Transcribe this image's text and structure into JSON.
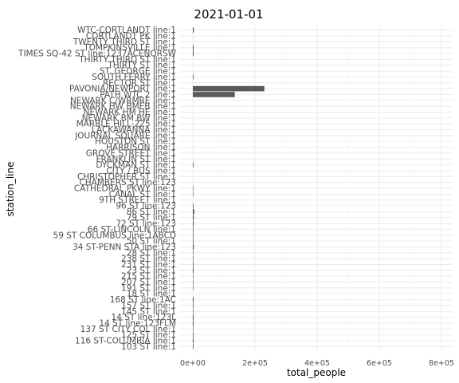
{
  "chart_data": {
    "type": "bar",
    "orientation": "horizontal",
    "title": "2021-01-01",
    "xlabel": "total_people",
    "ylabel": "station_line",
    "xlim": [
      0,
      850000
    ],
    "xticks": [
      0,
      200000,
      400000,
      600000,
      800000
    ],
    "xtick_labels": [
      "0e+00",
      "2e+05",
      "4e+05",
      "6e+05",
      "8e+05"
    ],
    "grid": true,
    "bar_color": "#595959",
    "categories": [
      "WTC-CORTLANDT line:1",
      "CORTLANDT PK line:1",
      "TWENTY THIRD ST line:1",
      "TOMPKINSVILLE line:1",
      "TIMES SQ-42 ST line:1237ACENQRSW",
      "THIRTY THIRD ST line:1",
      "THIRTY ST line:1",
      "ST. GEORGE line:1",
      "SOUTH FERRY line:1",
      "RECTOR ST line:1",
      "PAVONIA/NEWPORT line:1",
      "PATH WTC 2 line:1",
      "NEWARK C/WRMRE line:1",
      "NEWARK HW BMEB line:1",
      "NEWARK HM HE line:1",
      "NEWARK BM BW line:1",
      "MARBLE HILL-225 line:1",
      "LACKAWANNA line:1",
      "JOURNAL SQUARE line:1",
      "HOUSTON ST line:1",
      "HARRISON line:1",
      "GROVE STREET line:1",
      "FRANKLIN ST line:1",
      "DYCKMAN ST line:1",
      "CITY / BUS line:1",
      "CHRISTOPHER ST line:1",
      "CHAMBERS ST line:123",
      "CATHEDRAL PKWY line:1",
      "CANAL ST line:1",
      "9TH STREET line:1",
      "96 ST line:123",
      "86 ST line:1",
      "79 ST line:1",
      "72 ST line:123",
      "66 ST-LINCOLN line:1",
      "59 ST COLUMBUS line:1ABCD",
      "50 ST line:1",
      "34 ST-PENN STA line:123",
      "28 ST line:1",
      "238 ST line:1",
      "231 ST line:1",
      "23 ST line:1",
      "215 ST line:1",
      "207 ST line:1",
      "191 ST line:1",
      "18 ST line:1",
      "168 ST line:1AC",
      "157 ST line:1",
      "145 ST line:1",
      "14 ST line:123L",
      "14 ST line:123FLM",
      "137 ST CITY COL line:1",
      "125 ST line:1",
      "116 ST-COLUMBIA line:1",
      "103 ST line:1"
    ],
    "values": [
      3000,
      0,
      0,
      2500,
      2500,
      0,
      0,
      0,
      2000,
      0,
      230000,
      135000,
      0,
      0,
      0,
      0,
      0,
      0,
      0,
      0,
      0,
      0,
      0,
      2000,
      0,
      0,
      0,
      1500,
      1500,
      0,
      2000,
      4500,
      3000,
      2500,
      2000,
      2000,
      2000,
      3000,
      1500,
      1500,
      2000,
      2500,
      1500,
      1500,
      1500,
      0,
      2500,
      2000,
      1500,
      2500,
      2500,
      1500,
      2000,
      2500,
      2000
    ]
  }
}
